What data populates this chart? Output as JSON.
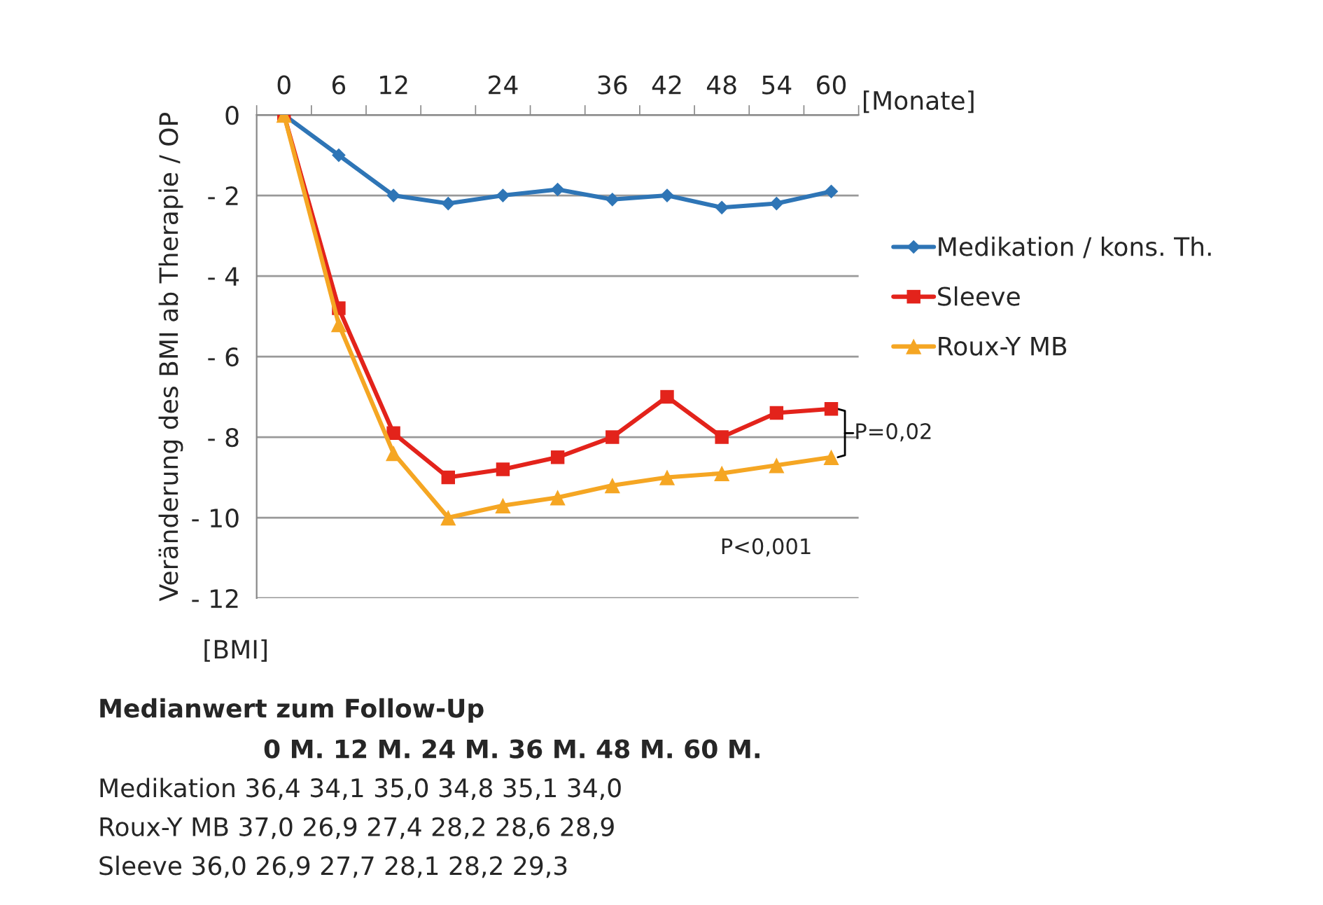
{
  "chart_data": {
    "type": "line",
    "categories": [
      "0",
      "6",
      "12",
      null,
      "24",
      null,
      "36",
      "42",
      "48",
      "54",
      "60"
    ],
    "xlabel": "[Monate]",
    "ylabel": "Veränderung des BMI ab Therapie / OP",
    "ylim": [
      -12,
      0
    ],
    "yticks": [
      {
        "value": 0,
        "label": "0"
      },
      {
        "value": -2,
        "label": "- 2"
      },
      {
        "value": -4,
        "label": "- 4"
      },
      {
        "value": -6,
        "label": "- 6"
      },
      {
        "value": -8,
        "label": "- 8"
      },
      {
        "value": -10,
        "label": "- 10"
      },
      {
        "value": -12,
        "label": "- 12"
      }
    ],
    "grid": "y",
    "legend": "right",
    "series": [
      {
        "name": "Medikation / kons. Th.",
        "color": "#2e75b6",
        "marker": "diamond",
        "values": [
          0,
          -1,
          -2,
          -2.2,
          -2,
          -1.85,
          -2.1,
          -2,
          -2.3,
          -2.2,
          -1.9
        ]
      },
      {
        "name": "Sleeve",
        "color": "#e3231b",
        "marker": "square",
        "values": [
          0,
          -4.8,
          -7.9,
          -9,
          -8.8,
          -8.5,
          -8,
          -7,
          -8,
          -7.4,
          -7.3
        ]
      },
      {
        "name": "Roux-Y MB",
        "color": "#f5a623",
        "marker": "triangle",
        "values": [
          0,
          -5.2,
          -8.4,
          -10,
          -9.7,
          -9.5,
          -9.2,
          -9,
          -8.9,
          -8.7,
          -8.5
        ]
      }
    ],
    "annotations": [
      "P=0,02",
      "P<0,001",
      "[BMI]",
      "Medianwert zum Follow-Up",
      "0 M. 12 M. 24 M. 36 M. 48 M. 60 M.",
      "Medikation 36,4 34,1 35,0 34,8 35,1 34,0",
      "Roux-Y MB 37,0 26,9 27,4 28,2 28,6 28,9",
      "Sleeve 36,0 26,9 27,7 28,1 28,2 29,3"
    ]
  }
}
